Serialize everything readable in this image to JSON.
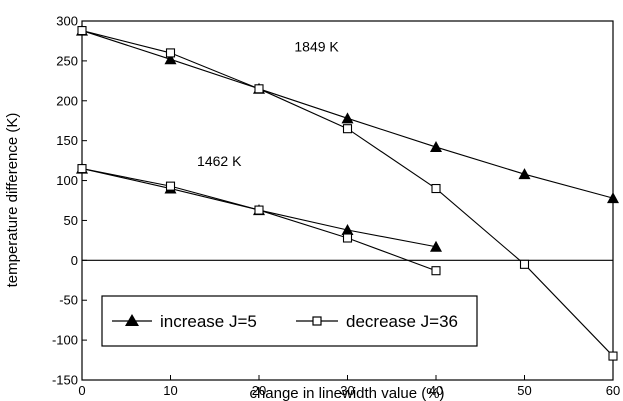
{
  "chart_data": {
    "type": "line",
    "title": "",
    "xlabel": "change in linewidth value (%)",
    "ylabel": "temperature difference (K)",
    "xlim": [
      0,
      60
    ],
    "ylim": [
      -150,
      300
    ],
    "x_ticks": [
      0,
      10,
      20,
      30,
      40,
      50,
      60
    ],
    "y_ticks": [
      300,
      250,
      200,
      150,
      100,
      50,
      0,
      -50,
      -100,
      -150
    ],
    "grid": false,
    "zero_line": true,
    "legend": {
      "placement": "bottom-left",
      "entries": [
        {
          "label": "increase J=5",
          "marker": "filled-triangle"
        },
        {
          "label": "decrease J=36",
          "marker": "open-square"
        }
      ]
    },
    "annotations": [
      {
        "text": "1849 K",
        "x": 24,
        "y": 262
      },
      {
        "text": "1462 K",
        "x": 13,
        "y": 118
      }
    ],
    "series": [
      {
        "group": "1849 K",
        "marker": "filled-triangle",
        "x": [
          0,
          10,
          20,
          30,
          40,
          50,
          60
        ],
        "values": [
          288,
          252,
          215,
          178,
          142,
          108,
          78
        ]
      },
      {
        "group": "1849 K",
        "marker": "open-square",
        "x": [
          0,
          10,
          20,
          30,
          40,
          50,
          60
        ],
        "values": [
          288,
          260,
          215,
          165,
          90,
          -5,
          -120
        ]
      },
      {
        "group": "1462 K",
        "marker": "filled-triangle",
        "x": [
          0,
          10,
          20,
          30,
          40
        ],
        "values": [
          115,
          90,
          63,
          38,
          17
        ]
      },
      {
        "group": "1462 K",
        "marker": "open-square",
        "x": [
          0,
          10,
          20,
          30,
          40
        ],
        "values": [
          115,
          93,
          63,
          28,
          -13
        ]
      }
    ]
  }
}
